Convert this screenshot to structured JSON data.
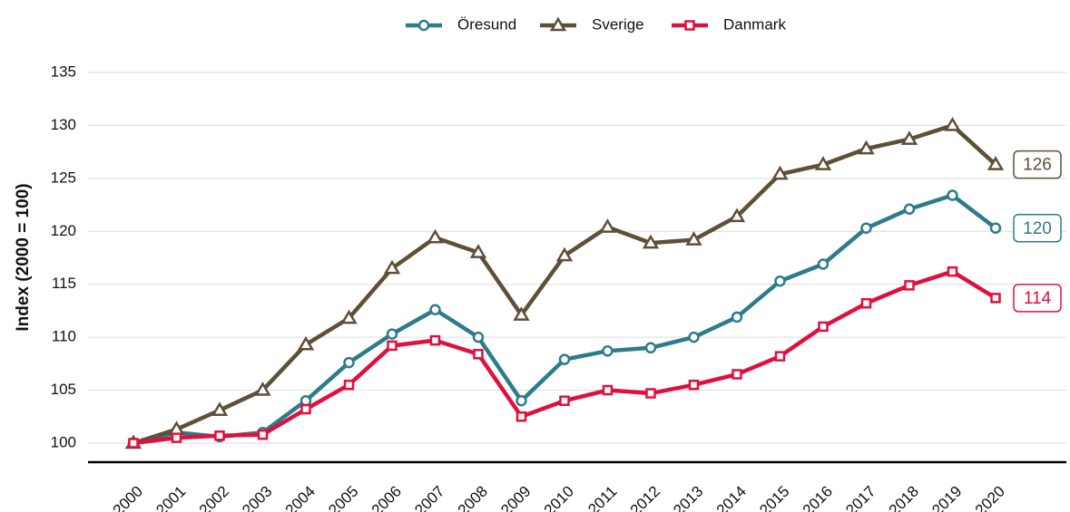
{
  "chart_data": {
    "type": "line",
    "y_label": "Index (2000 = 100)",
    "categories": [
      "2000",
      "2001",
      "2002",
      "2003",
      "2004",
      "2005",
      "2006",
      "2007",
      "2008",
      "2009",
      "2010",
      "2011",
      "2012",
      "2013",
      "2014",
      "2015",
      "2016",
      "2017",
      "2018",
      "2019",
      "2020"
    ],
    "series": [
      {
        "name": "Öresund",
        "color": "#2e7b8b",
        "marker": "circle",
        "values": [
          100,
          101,
          100.6,
          101,
          104,
          107.6,
          110.3,
          112.6,
          110,
          104,
          107.9,
          108.7,
          109,
          110,
          111.9,
          115.3,
          116.9,
          120.3,
          122.1,
          123.4,
          120.3
        ],
        "end_label": "120"
      },
      {
        "name": "Sverige",
        "color": "#5e4f37",
        "marker": "triangle",
        "values": [
          100,
          101.3,
          103.1,
          105,
          109.3,
          111.8,
          116.5,
          119.4,
          118,
          112.1,
          117.7,
          120.4,
          118.9,
          119.2,
          121.4,
          125.4,
          126.3,
          127.8,
          128.7,
          130,
          126.3
        ],
        "end_label": "126"
      },
      {
        "name": "Danmark",
        "color": "#e0103e",
        "marker": "square",
        "values": [
          100,
          100.5,
          100.7,
          100.8,
          103.2,
          105.5,
          109.2,
          109.7,
          108.4,
          102.5,
          104,
          105,
          104.7,
          105.5,
          106.5,
          108.2,
          111,
          113.2,
          114.9,
          116.2,
          113.7
        ],
        "end_label": "114"
      }
    ],
    "ylim": [
      98.2,
      135
    ],
    "yticks": [
      100,
      105,
      110,
      115,
      120,
      125,
      130,
      135
    ],
    "grid": true,
    "legend": "top"
  }
}
